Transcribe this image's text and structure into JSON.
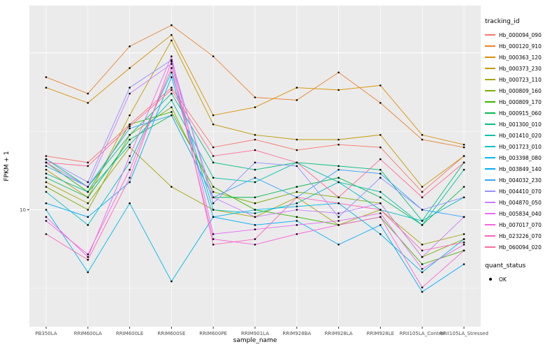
{
  "chart_data": {
    "type": "line",
    "title": "",
    "xlabel": "sample_name",
    "ylabel": "FPKM + 1",
    "y_scale": "log10",
    "y_ticks": [
      10
    ],
    "ylim": [
      1.8,
      200
    ],
    "panel_bg": "#EBEBEB",
    "grid_color": "#FFFFFF",
    "point_color": "#000000",
    "legend_title": "tracking_id",
    "quant_status": {
      "title": "quant_status",
      "ok_label": "OK",
      "marker_color": "#000000"
    },
    "categories": [
      "PB350LA",
      "RRIM600LA",
      "RRIM600LE",
      "RRIM600SE",
      "RRIM600PE",
      "RRIM901LA",
      "RRIM928BA",
      "RRIM928LA",
      "RRIM928LE",
      "RRII105LA_Control",
      "RRII105LA_Stressed"
    ],
    "series": [
      {
        "name": "Hb_000094_090",
        "color": "#F8766D",
        "values": [
          22,
          20,
          35,
          60,
          25,
          28,
          24,
          26,
          25,
          13,
          22
        ]
      },
      {
        "name": "Hb_000120_910",
        "color": "#EA8331",
        "values": [
          70,
          55,
          110,
          150,
          95,
          52,
          50,
          75,
          48,
          28,
          25
        ]
      },
      {
        "name": "Hb_000363_120",
        "color": "#D89000",
        "values": [
          60,
          48,
          80,
          130,
          40,
          45,
          60,
          58,
          62,
          30,
          26
        ]
      },
      {
        "name": "Hb_000373_230",
        "color": "#C09B00",
        "values": [
          18,
          12,
          40,
          120,
          35,
          30,
          28,
          28,
          30,
          14,
          22
        ]
      },
      {
        "name": "Hb_000723_110",
        "color": "#A3A500",
        "values": [
          15,
          11,
          25,
          14,
          10,
          9,
          12,
          8,
          10,
          6,
          7
        ]
      },
      {
        "name": "Hb_000809_160",
        "color": "#7CAE00",
        "values": [
          14,
          10,
          30,
          45,
          13,
          11,
          13,
          12,
          11,
          5,
          6.5
        ]
      },
      {
        "name": "Hb_000809_170",
        "color": "#39B600",
        "values": [
          20,
          13,
          35,
          42,
          14,
          10,
          9,
          8,
          9,
          4.5,
          5.5
        ]
      },
      {
        "name": "Hb_000915_060",
        "color": "#00BB4E",
        "values": [
          16,
          12,
          28,
          40,
          12,
          12,
          14,
          16,
          12,
          8,
          14
        ]
      },
      {
        "name": "Hb_001300_010",
        "color": "#00BF7D",
        "values": [
          21,
          14,
          30,
          55,
          20,
          18,
          20,
          19,
          18,
          8.5,
          20
        ]
      },
      {
        "name": "Hb_001410_020",
        "color": "#00C1A3",
        "values": [
          17,
          13,
          26,
          50,
          16,
          15,
          20,
          15,
          13,
          8,
          18
        ]
      },
      {
        "name": "Hb_001723_010",
        "color": "#00BFC4",
        "values": [
          13,
          8,
          20,
          75,
          10,
          9.5,
          11,
          15,
          10,
          8.5,
          12
        ]
      },
      {
        "name": "Hb_003398_080",
        "color": "#00B8E7",
        "values": [
          10,
          4,
          11,
          3.5,
          9,
          10,
          10.5,
          11,
          7,
          4,
          6.5
        ]
      },
      {
        "name": "Hb_003849_140",
        "color": "#00ACFC",
        "values": [
          11,
          9,
          15,
          70,
          9,
          8,
          8.5,
          6,
          8,
          3,
          4.5
        ]
      },
      {
        "name": "Hb_004032_230",
        "color": "#35A2FF",
        "values": [
          19,
          14,
          33,
          40,
          12,
          16,
          12,
          18,
          17,
          10,
          9
        ]
      },
      {
        "name": "Hb_004410_070",
        "color": "#9590FF",
        "values": [
          21,
          15,
          60,
          90,
          11,
          20,
          19,
          9,
          16,
          10,
          12
        ]
      },
      {
        "name": "Hb_004870_050",
        "color": "#C77CFF",
        "values": [
          20,
          14,
          55,
          85,
          12,
          9,
          10,
          9.5,
          11,
          5,
          9
        ]
      },
      {
        "name": "Hb_005834_040",
        "color": "#E76BF3",
        "values": [
          9,
          5,
          22,
          95,
          7,
          7.5,
          8,
          8.5,
          9.5,
          4.2,
          6
        ]
      },
      {
        "name": "Hb_007017_070",
        "color": "#FA62DB",
        "values": [
          8.5,
          5.2,
          18,
          80,
          6.5,
          6,
          7,
          8,
          9,
          3.2,
          5.5
        ]
      },
      {
        "name": "Hb_023226_070",
        "color": "#FF62BC",
        "values": [
          7,
          4.8,
          16,
          88,
          6,
          6.5,
          12,
          11,
          10,
          5.5,
          6.2
        ]
      },
      {
        "name": "Hb_060094_020",
        "color": "#FF6A98",
        "values": [
          20,
          19,
          34,
          58,
          22,
          24,
          20,
          12,
          21,
          12,
          20
        ]
      }
    ]
  }
}
